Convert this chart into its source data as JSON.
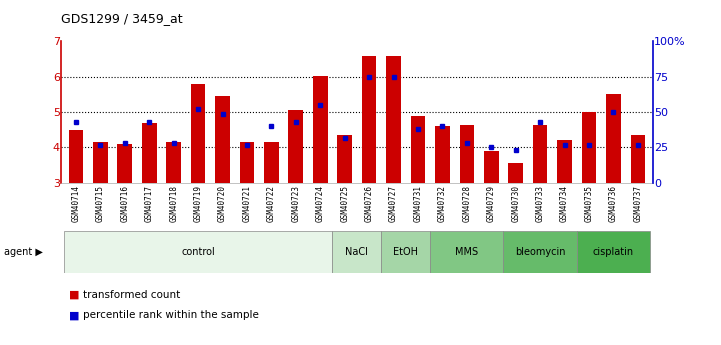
{
  "title": "GDS1299 / 3459_at",
  "samples": [
    "GSM40714",
    "GSM40715",
    "GSM40716",
    "GSM40717",
    "GSM40718",
    "GSM40719",
    "GSM40720",
    "GSM40721",
    "GSM40722",
    "GSM40723",
    "GSM40724",
    "GSM40725",
    "GSM40726",
    "GSM40727",
    "GSM40731",
    "GSM40732",
    "GSM40728",
    "GSM40729",
    "GSM40730",
    "GSM40733",
    "GSM40734",
    "GSM40735",
    "GSM40736",
    "GSM40737"
  ],
  "transformed_count": [
    4.5,
    4.15,
    4.1,
    4.7,
    4.15,
    5.8,
    5.45,
    4.15,
    4.15,
    5.05,
    6.02,
    4.35,
    6.6,
    6.6,
    4.9,
    4.6,
    4.65,
    3.9,
    3.55,
    4.65,
    4.2,
    5.0,
    5.5,
    4.35
  ],
  "percentile_rank": [
    43,
    27,
    28,
    43,
    28,
    52,
    49,
    27,
    40,
    43,
    55,
    32,
    75,
    75,
    38,
    40,
    28,
    25,
    23,
    43,
    27,
    27,
    50,
    27
  ],
  "agents": [
    {
      "label": "control",
      "count": 11,
      "color": "#e8f5e9"
    },
    {
      "label": "NaCl",
      "count": 2,
      "color": "#c8e6c9"
    },
    {
      "label": "EtOH",
      "count": 2,
      "color": "#a5d6a7"
    },
    {
      "label": "MMS",
      "count": 3,
      "color": "#81c784"
    },
    {
      "label": "bleomycin",
      "count": 3,
      "color": "#66bb6a"
    },
    {
      "label": "cisplatin",
      "count": 3,
      "color": "#4caf50"
    }
  ],
  "ymin": 3,
  "ymax": 7,
  "yticks_left": [
    3,
    4,
    5,
    6,
    7
  ],
  "yticks_right": [
    0,
    25,
    50,
    75,
    100
  ],
  "bar_color": "#cc0000",
  "dot_color": "#0000cc",
  "legend_items": [
    "transformed count",
    "percentile rank within the sample"
  ]
}
